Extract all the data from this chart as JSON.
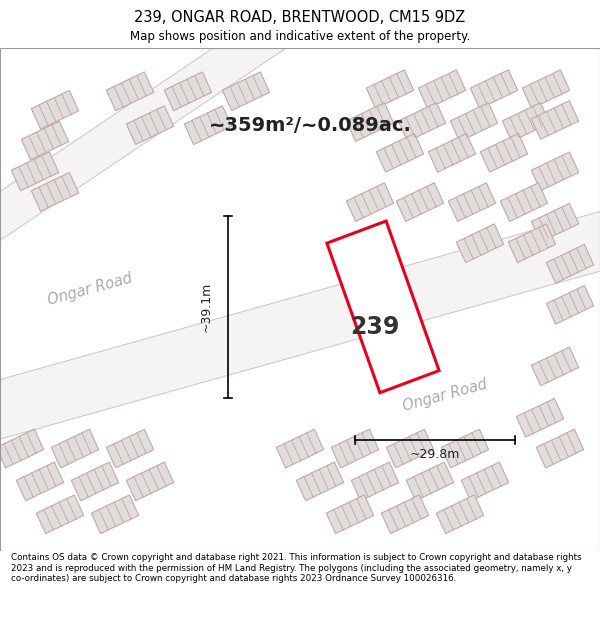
{
  "title": "239, ONGAR ROAD, BRENTWOOD, CM15 9DZ",
  "subtitle": "Map shows position and indicative extent of the property.",
  "footer": "Contains OS data © Crown copyright and database right 2021. This information is subject to Crown copyright and database rights 2023 and is reproduced with the permission of HM Land Registry. The polygons (including the associated geometry, namely x, y co-ordinates) are subject to Crown copyright and database rights 2023 Ordnance Survey 100026316.",
  "bg_color": "#eeecec",
  "highlight_color": "#e8001c",
  "area_text": "~359m²/~0.089ac.",
  "width_text": "~29.8m",
  "height_text": "~39.1m",
  "number_text": "239",
  "road_label": "Ongar Road",
  "building_fill": "#e0dddd",
  "building_edge": "#ccaaaa",
  "hatch_color": "#d4a0a0",
  "road_fill": "#f5f3f3",
  "road_edge": "#cccccc"
}
